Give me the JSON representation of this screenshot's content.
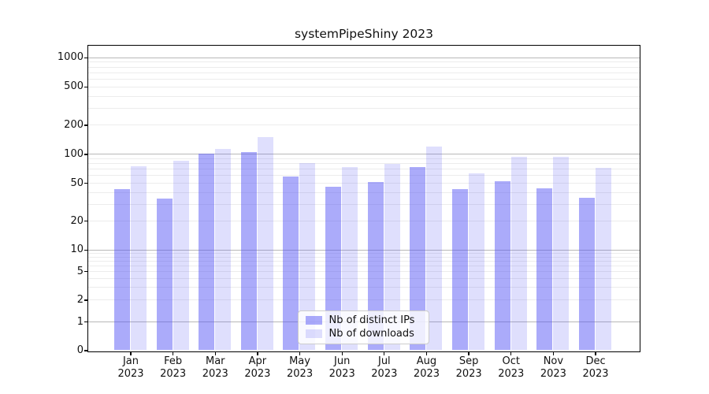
{
  "chart_data": {
    "type": "bar",
    "title": "systemPipeShiny 2023",
    "months": [
      "Jan",
      "Feb",
      "Mar",
      "Apr",
      "May",
      "Jun",
      "Jul",
      "Aug",
      "Sep",
      "Oct",
      "Nov",
      "Dec"
    ],
    "year": "2023",
    "series": [
      {
        "name": "Nb of distinct IPs",
        "color": "rgba(80,80,245,0.48)",
        "values": [
          43,
          34,
          100,
          105,
          58,
          45,
          51,
          73,
          43,
          52,
          44,
          35
        ]
      },
      {
        "name": "Nb of downloads",
        "color": "rgba(80,80,245,0.185)",
        "values": [
          74,
          85,
          113,
          150,
          80,
          73,
          78,
          120,
          63,
          93,
          93,
          72
        ]
      }
    ],
    "yticks": [
      0,
      1,
      2,
      5,
      10,
      20,
      50,
      100,
      200,
      500,
      1000
    ],
    "ylim": [
      0,
      1300
    ],
    "yscale": "log-with-zero",
    "xlabel": "",
    "ylabel": "",
    "grid": "horizontal major+minor",
    "legend_position": "lower center"
  },
  "colors": {
    "background": "#ffffff",
    "axis": "#000000",
    "grid_major": "#b8b8b8",
    "grid_minor": "#ececec",
    "bar_ips": "rgba(80,80,245,0.48)",
    "bar_downloads": "rgba(80,80,245,0.185)",
    "legend_border": "#cccccc",
    "text": "#111111"
  }
}
